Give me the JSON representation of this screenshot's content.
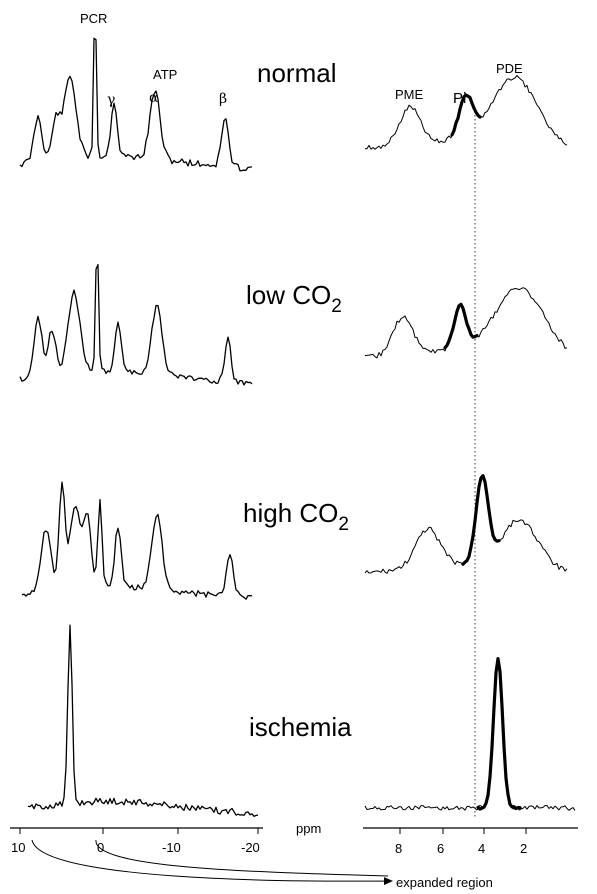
{
  "figure": {
    "peak_labels": {
      "pcr": "PCR",
      "atp": "ATP",
      "gamma": "γ",
      "alpha": "α",
      "beta": "β",
      "pme": "PME",
      "pi": "Pi",
      "pde": "PDE"
    },
    "conditions": [
      {
        "label": "normal",
        "subscript": ""
      },
      {
        "label": "low CO",
        "subscript": "2"
      },
      {
        "label": "high CO",
        "subscript": "2"
      },
      {
        "label": "ischemia",
        "subscript": ""
      }
    ],
    "axis_unit": "ppm",
    "expanded_label": "expanded region"
  },
  "chart_data": [
    {
      "type": "line",
      "description_scope": "full spectrum",
      "xlabel": "ppm",
      "xlim": [
        10,
        -20
      ],
      "xticks": [
        "10",
        "0",
        "-10",
        "-20"
      ],
      "series": [
        {
          "name": "normal",
          "peaks": [
            {
              "ppm": 0,
              "height": 1.0
            },
            {
              "ppm": -2.5,
              "height": 0.35
            },
            {
              "ppm": -7.5,
              "height": 0.45
            },
            {
              "ppm": -16,
              "height": 0.35
            }
          ]
        },
        {
          "name": "low CO2",
          "peaks": [
            {
              "ppm": 0,
              "height": 1.0
            },
            {
              "ppm": -2.5,
              "height": 0.3
            },
            {
              "ppm": -7.5,
              "height": 0.4
            },
            {
              "ppm": -16,
              "height": 0.25
            }
          ]
        },
        {
          "name": "high CO2",
          "peaks": [
            {
              "ppm": 0,
              "height": 0.55
            },
            {
              "ppm": -2.5,
              "height": 0.35
            },
            {
              "ppm": -7.5,
              "height": 0.45
            },
            {
              "ppm": -16,
              "height": 0.25
            }
          ]
        },
        {
          "name": "ischemia",
          "peaks": [
            {
              "ppm": 5,
              "height": 1.0
            }
          ]
        }
      ]
    },
    {
      "type": "line",
      "description_scope": "expanded region",
      "xlabel": "expanded region",
      "xlim": [
        9,
        1
      ],
      "xticks": [
        "8",
        "6",
        "4",
        "2"
      ],
      "series": [
        {
          "name": "normal",
          "pi_ppm": 5.1,
          "pi_height": 0.55
        },
        {
          "name": "low CO2",
          "pi_ppm": 5.1,
          "pi_height": 0.5
        },
        {
          "name": "high CO2",
          "pi_ppm": 4.7,
          "pi_height": 0.95
        },
        {
          "name": "ischemia",
          "pi_ppm": 4.0,
          "pi_height": 1.0
        }
      ]
    }
  ]
}
